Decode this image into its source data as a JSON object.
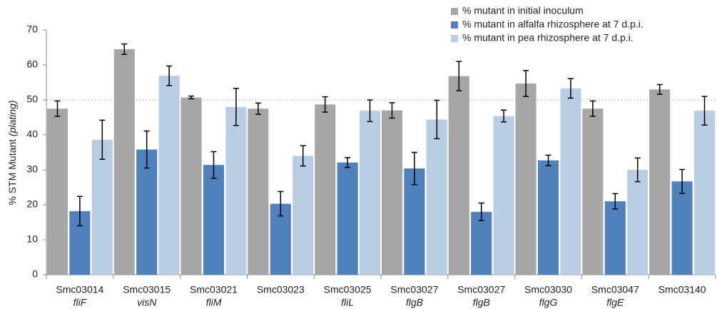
{
  "chart_data": {
    "type": "grouped-bar",
    "ylabel": "% STM Mutant",
    "ylabel_italic": "(plating)",
    "categories": [
      "Smc03014",
      "Smc03015",
      "Smc03021",
      "Smc03023",
      "Smc03025",
      "Smc03027",
      "Smc03027",
      "Smc03030",
      "Smc03047",
      "Smc03140"
    ],
    "genes": [
      "fliF",
      "visN",
      "fliM",
      null,
      "fliL",
      "flgB",
      "flgB",
      "flgG",
      "flgE",
      null
    ],
    "series": [
      {
        "name": "% mutant in initial inoculum",
        "color": "#a6a6a6",
        "values": [
          47.5,
          64.5,
          50.7,
          47.5,
          48.7,
          47,
          56.8,
          54.7,
          47.5,
          53
        ],
        "errors": [
          2.2,
          1.5,
          0.4,
          1.6,
          2.2,
          2.2,
          4.2,
          3.7,
          2.2,
          1.4
        ]
      },
      {
        "name": "% mutant in alfalfa rhizosphere at 7 d.p.i.",
        "color": "#4f81bd",
        "values": [
          18.2,
          35.8,
          31.4,
          20.3,
          32.1,
          30.4,
          18,
          32.7,
          21,
          26.7
        ],
        "errors": [
          4.2,
          5.3,
          3.8,
          3.5,
          1.4,
          4.6,
          2.5,
          1.5,
          2.2,
          3.4
        ]
      },
      {
        "name": "% mutant in pea rhizosphere at 7 d.p.i.",
        "color": "#b9cde5",
        "values": [
          38.6,
          56.9,
          48,
          34,
          46.9,
          44.4,
          45.4,
          53.3,
          30,
          46.9
        ],
        "errors": [
          5.6,
          2.8,
          5.3,
          2.9,
          3.1,
          5.5,
          1.7,
          2.8,
          3.4,
          4.1
        ]
      }
    ],
    "ylim": [
      0,
      70
    ],
    "yticks": [
      0,
      10,
      20,
      30,
      40,
      50,
      60,
      70
    ],
    "reference_line": 50,
    "legend": "top-right"
  }
}
